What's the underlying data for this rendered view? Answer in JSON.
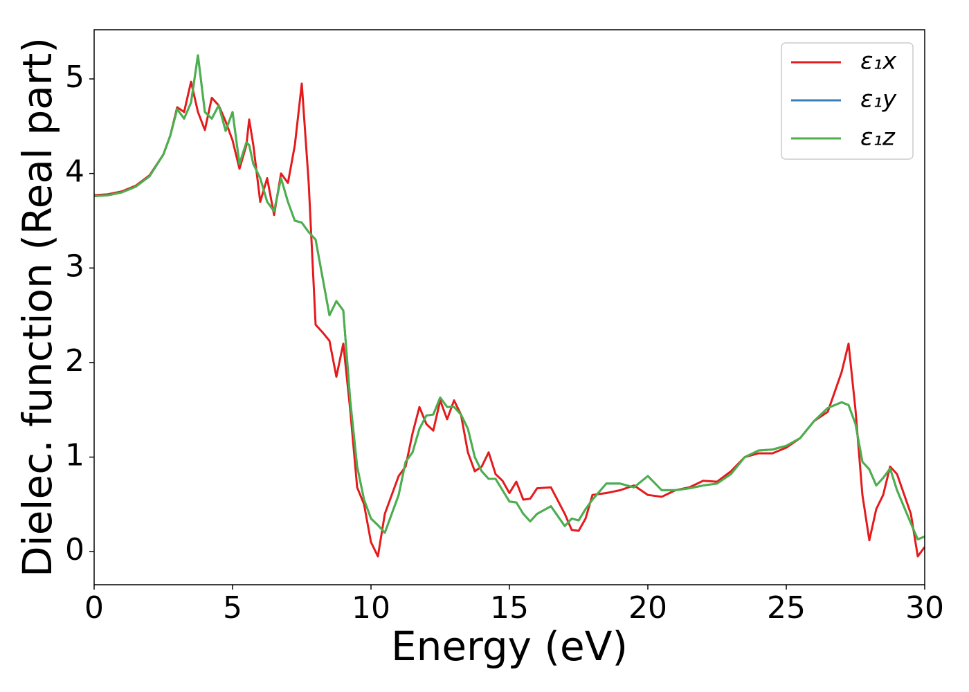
{
  "chart_data": {
    "type": "line",
    "xlabel": "Energy (eV)",
    "ylabel": "Dielec. function (Real part)",
    "x": [
      0,
      0.5,
      1,
      1.5,
      2,
      2.5,
      2.75,
      3,
      3.25,
      3.5,
      3.75,
      4,
      4.25,
      4.5,
      4.75,
      5,
      5.25,
      5.5,
      5.6,
      5.75,
      6,
      6.25,
      6.5,
      6.75,
      7,
      7.25,
      7.5,
      7.75,
      8,
      8.25,
      8.5,
      8.75,
      9,
      9.25,
      9.5,
      9.75,
      10,
      10.25,
      10.5,
      11,
      11.25,
      11.5,
      11.75,
      12,
      12.25,
      12.5,
      12.75,
      13,
      13.25,
      13.5,
      13.75,
      14,
      14.25,
      14.5,
      14.75,
      15,
      15.25,
      15.5,
      15.75,
      16,
      16.5,
      17,
      17.25,
      17.5,
      17.75,
      18,
      18.5,
      19,
      19.5,
      20,
      20.5,
      21,
      21.5,
      22,
      22.5,
      23,
      23.5,
      24,
      24.5,
      25,
      25.5,
      26,
      26.5,
      27,
      27.25,
      27.5,
      27.75,
      28,
      28.25,
      28.5,
      28.75,
      29,
      29.5,
      29.75,
      30
    ],
    "series": [
      {
        "name": "ε₁x",
        "color": "#e41a1c",
        "values": [
          3.77,
          3.78,
          3.81,
          3.87,
          3.98,
          4.2,
          4.4,
          4.7,
          4.65,
          4.97,
          4.65,
          4.46,
          4.8,
          4.72,
          4.55,
          4.35,
          4.05,
          4.3,
          4.57,
          4.3,
          3.7,
          3.95,
          3.56,
          4.0,
          3.9,
          4.3,
          4.95,
          3.9,
          2.4,
          2.32,
          2.23,
          1.85,
          2.2,
          1.5,
          0.68,
          0.5,
          0.1,
          -0.05,
          0.4,
          0.8,
          0.9,
          1.25,
          1.53,
          1.35,
          1.28,
          1.6,
          1.4,
          1.6,
          1.45,
          1.05,
          0.85,
          0.9,
          1.05,
          0.82,
          0.75,
          0.62,
          0.74,
          0.55,
          0.56,
          0.67,
          0.68,
          0.4,
          0.23,
          0.22,
          0.35,
          0.6,
          0.62,
          0.65,
          0.7,
          0.6,
          0.58,
          0.65,
          0.68,
          0.75,
          0.74,
          0.85,
          1.0,
          1.04,
          1.04,
          1.1,
          1.2,
          1.38,
          1.48,
          1.9,
          2.2,
          1.5,
          0.6,
          0.12,
          0.45,
          0.6,
          0.9,
          0.82,
          0.4,
          -0.05,
          0.05
        ]
      },
      {
        "name": "ε₁y",
        "color": "#377eb8",
        "values": [
          3.76,
          3.77,
          3.8,
          3.86,
          3.97,
          4.2,
          4.4,
          4.68,
          4.58,
          4.75,
          5.25,
          4.65,
          4.58,
          4.72,
          4.45,
          4.65,
          4.1,
          4.33,
          4.3,
          4.1,
          3.95,
          3.7,
          3.6,
          3.95,
          3.7,
          3.5,
          3.48,
          3.38,
          3.3,
          2.9,
          2.5,
          2.65,
          2.55,
          1.6,
          0.9,
          0.55,
          0.35,
          0.28,
          0.2,
          0.6,
          0.95,
          1.05,
          1.3,
          1.44,
          1.45,
          1.63,
          1.53,
          1.53,
          1.45,
          1.3,
          1.0,
          0.85,
          0.77,
          0.77,
          0.65,
          0.53,
          0.52,
          0.4,
          0.32,
          0.4,
          0.48,
          0.27,
          0.35,
          0.33,
          0.45,
          0.55,
          0.72,
          0.72,
          0.68,
          0.8,
          0.65,
          0.65,
          0.67,
          0.7,
          0.72,
          0.82,
          1.0,
          1.07,
          1.08,
          1.12,
          1.2,
          1.38,
          1.52,
          1.58,
          1.55,
          1.35,
          0.95,
          0.87,
          0.7,
          0.78,
          0.88,
          0.65,
          0.3,
          0.13,
          0.16
        ]
      },
      {
        "name": "ε₁z",
        "color": "#4daf4a",
        "values": [
          3.76,
          3.77,
          3.8,
          3.86,
          3.97,
          4.2,
          4.4,
          4.68,
          4.58,
          4.75,
          5.25,
          4.65,
          4.58,
          4.72,
          4.45,
          4.65,
          4.1,
          4.33,
          4.3,
          4.1,
          3.95,
          3.7,
          3.6,
          3.95,
          3.7,
          3.5,
          3.48,
          3.38,
          3.3,
          2.9,
          2.5,
          2.65,
          2.55,
          1.6,
          0.9,
          0.55,
          0.35,
          0.28,
          0.2,
          0.6,
          0.95,
          1.05,
          1.3,
          1.44,
          1.45,
          1.63,
          1.53,
          1.53,
          1.45,
          1.3,
          1.0,
          0.85,
          0.77,
          0.77,
          0.65,
          0.53,
          0.52,
          0.4,
          0.32,
          0.4,
          0.48,
          0.27,
          0.35,
          0.33,
          0.45,
          0.55,
          0.72,
          0.72,
          0.68,
          0.8,
          0.65,
          0.65,
          0.67,
          0.7,
          0.72,
          0.82,
          1.0,
          1.07,
          1.08,
          1.12,
          1.2,
          1.38,
          1.52,
          1.58,
          1.55,
          1.35,
          0.95,
          0.87,
          0.7,
          0.78,
          0.88,
          0.65,
          0.3,
          0.13,
          0.16
        ]
      }
    ],
    "xlim": [
      0,
      30
    ],
    "xticks": [
      0,
      5,
      10,
      15,
      20,
      25,
      30
    ],
    "ylim": [
      -0.35,
      5.52
    ],
    "yticks": [
      0,
      1,
      2,
      3,
      4,
      5
    ],
    "grid": false,
    "legend": "upper right"
  }
}
